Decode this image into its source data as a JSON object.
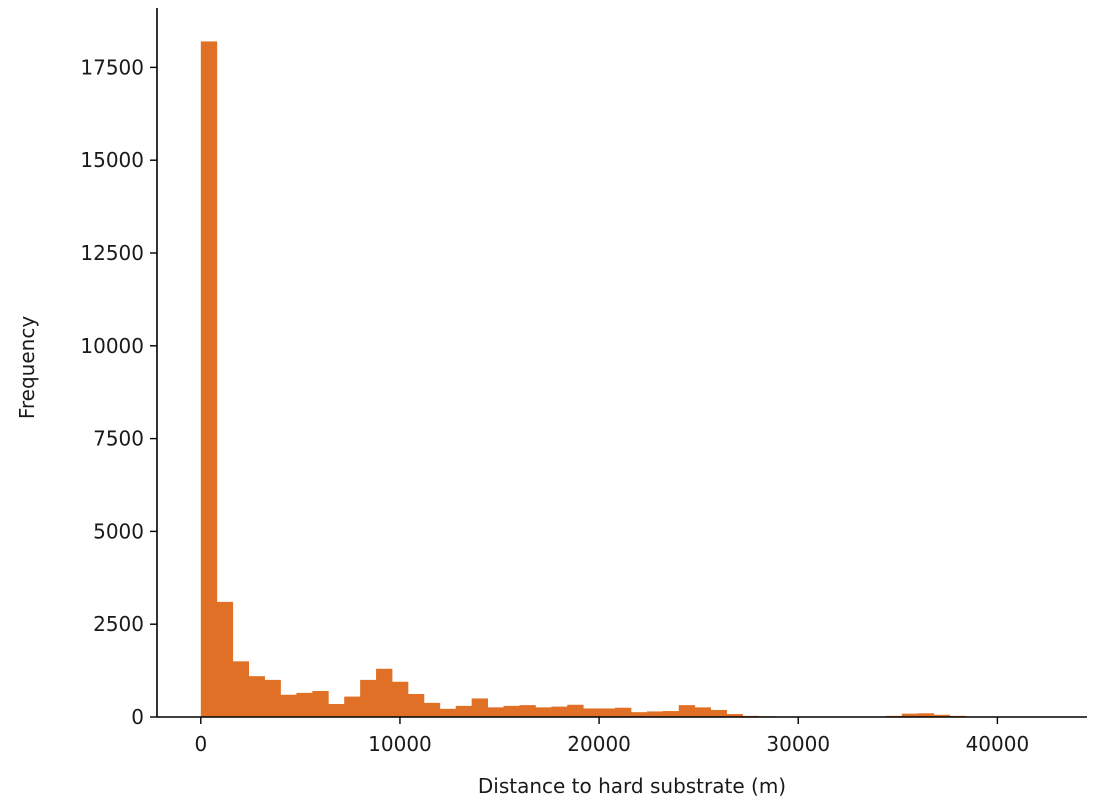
{
  "chart_data": {
    "type": "bar",
    "title": "",
    "xlabel": "Distance to hard substrate (m)",
    "ylabel": "Frequency",
    "xlim": [
      -2200,
      44500
    ],
    "ylim": [
      0,
      19100
    ],
    "xticks": [
      0,
      10000,
      20000,
      30000,
      40000
    ],
    "xtick_labels": [
      "0",
      "10000",
      "20000",
      "30000",
      "40000"
    ],
    "yticks": [
      0,
      2500,
      5000,
      7500,
      10000,
      12500,
      15000,
      17500
    ],
    "ytick_labels": [
      "0",
      "2500",
      "5000",
      "7500",
      "10000",
      "12500",
      "15000",
      "17500"
    ],
    "grid": false,
    "color": "#e07026",
    "bin_start": 0,
    "bin_width": 800,
    "values": [
      18200,
      3100,
      1500,
      1100,
      1000,
      600,
      650,
      700,
      350,
      550,
      1000,
      1300,
      950,
      620,
      380,
      220,
      300,
      500,
      260,
      300,
      320,
      260,
      280,
      330,
      230,
      230,
      250,
      130,
      150,
      160,
      320,
      260,
      190,
      80,
      30,
      20,
      0,
      0,
      0,
      0,
      0,
      0,
      0,
      30,
      90,
      100,
      60,
      30,
      0,
      0
    ]
  }
}
